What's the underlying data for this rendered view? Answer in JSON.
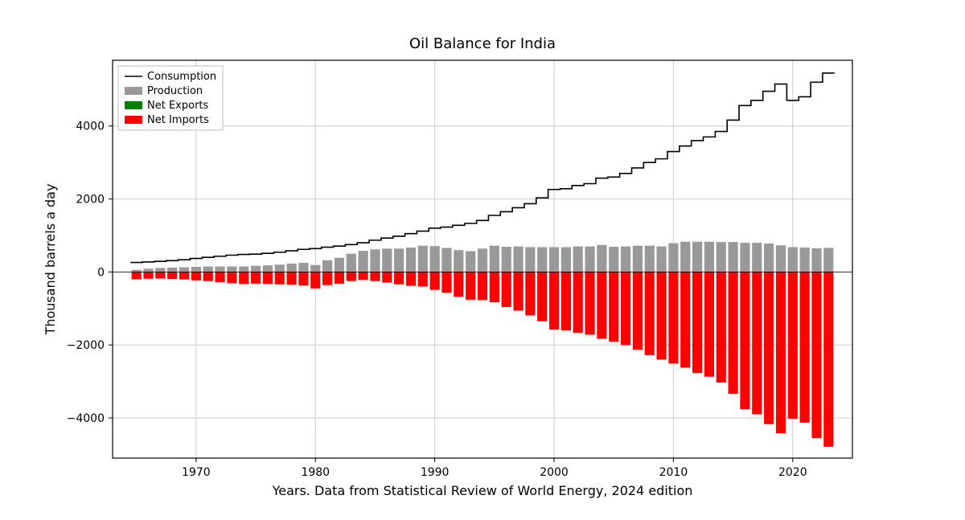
{
  "chart": {
    "type": "bar+line",
    "title": "Oil Balance for India",
    "title_fontsize": 18,
    "xlabel": "Years. Data from Statistical Review of World Energy, 2024 edition",
    "ylabel": "Thousand barrels a day",
    "label_fontsize": 16,
    "tick_fontsize": 14,
    "background_color": "#ffffff",
    "grid_color": "#cccccc",
    "axis_color": "#000000",
    "xlim": [
      1963,
      2025
    ],
    "ylim": [
      -5100,
      5800
    ],
    "xticks": [
      1970,
      1980,
      1990,
      2000,
      2010,
      2020
    ],
    "yticks": [
      -4000,
      -2000,
      0,
      2000,
      4000
    ],
    "bar_width": 0.82,
    "legend": {
      "items": [
        {
          "label": "Consumption",
          "type": "line",
          "color": "#000000"
        },
        {
          "label": "Production",
          "type": "bar",
          "color": "#999999"
        },
        {
          "label": "Net Exports",
          "type": "bar",
          "color": "#008000"
        },
        {
          "label": "Net Imports",
          "type": "bar",
          "color": "#ff0000"
        }
      ],
      "border_color": "#bfbfbf",
      "bg_color": "#ffffff"
    },
    "series": {
      "years": [
        1965,
        1966,
        1967,
        1968,
        1969,
        1970,
        1971,
        1972,
        1973,
        1974,
        1975,
        1976,
        1977,
        1978,
        1979,
        1980,
        1981,
        1982,
        1983,
        1984,
        1985,
        1986,
        1987,
        1988,
        1989,
        1990,
        1991,
        1992,
        1993,
        1994,
        1995,
        1996,
        1997,
        1998,
        1999,
        2000,
        2001,
        2002,
        2003,
        2004,
        2005,
        2006,
        2007,
        2008,
        2009,
        2010,
        2011,
        2012,
        2013,
        2014,
        2015,
        2016,
        2017,
        2018,
        2019,
        2020,
        2021,
        2022,
        2023
      ],
      "consumption": {
        "color": "#000000",
        "line_width": 1.6,
        "style": "step",
        "values": [
          260,
          275,
          290,
          310,
          335,
          370,
          400,
          430,
          460,
          480,
          490,
          510,
          540,
          580,
          620,
          640,
          680,
          710,
          750,
          800,
          870,
          930,
          980,
          1050,
          1120,
          1200,
          1230,
          1280,
          1330,
          1410,
          1550,
          1650,
          1760,
          1870,
          2030,
          2260,
          2280,
          2370,
          2420,
          2570,
          2600,
          2700,
          2850,
          3000,
          3100,
          3300,
          3450,
          3600,
          3700,
          3850,
          4160,
          4560,
          4700,
          4950,
          5150,
          4700,
          4800,
          5200,
          5450
        ]
      },
      "production": {
        "color": "#999999",
        "values": [
          60,
          90,
          110,
          120,
          130,
          140,
          150,
          150,
          150,
          150,
          170,
          180,
          200,
          230,
          250,
          190,
          320,
          390,
          500,
          580,
          620,
          640,
          640,
          670,
          720,
          710,
          660,
          600,
          570,
          640,
          720,
          690,
          700,
          680,
          680,
          680,
          680,
          700,
          700,
          740,
          690,
          700,
          720,
          720,
          700,
          790,
          830,
          830,
          830,
          820,
          820,
          800,
          800,
          780,
          730,
          680,
          670,
          650,
          660
        ]
      },
      "net_imports": {
        "color": "#ff0000",
        "values": [
          -200,
          -185,
          -180,
          -190,
          -205,
          -230,
          -250,
          -280,
          -310,
          -330,
          -320,
          -330,
          -340,
          -350,
          -370,
          -450,
          -360,
          -320,
          -250,
          -220,
          -250,
          -290,
          -340,
          -380,
          -400,
          -490,
          -570,
          -680,
          -760,
          -770,
          -830,
          -960,
          -1060,
          -1190,
          -1350,
          -1580,
          -1600,
          -1670,
          -1720,
          -1830,
          -1910,
          -2000,
          -2130,
          -2280,
          -2400,
          -2510,
          -2620,
          -2770,
          -2870,
          -3030,
          -3340,
          -3760,
          -3900,
          -4170,
          -4420,
          -4020,
          -4130,
          -4550,
          -4790
        ]
      },
      "net_exports": {
        "color": "#008000",
        "values": []
      }
    }
  }
}
